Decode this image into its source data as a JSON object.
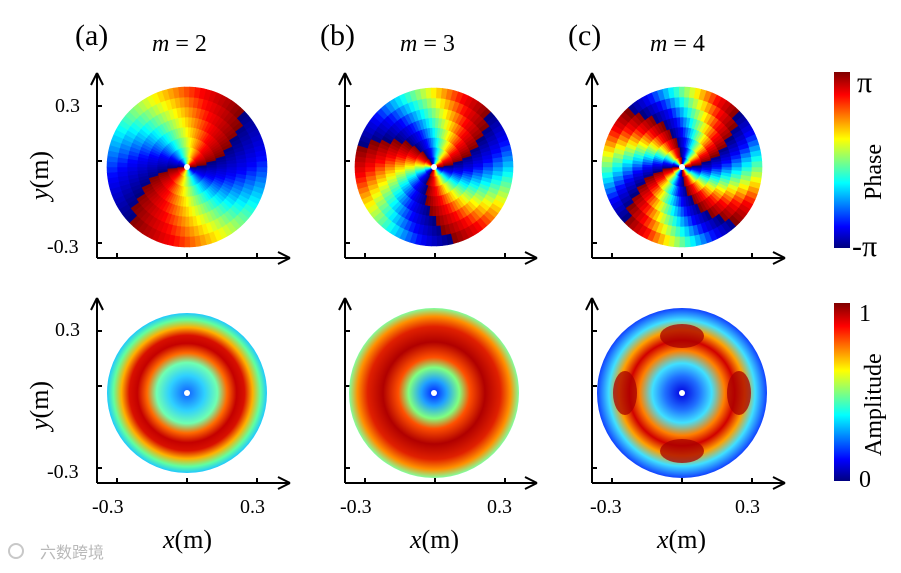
{
  "panels": [
    {
      "label": "(a)",
      "m": "2"
    },
    {
      "label": "(b)",
      "m": "3"
    },
    {
      "label": "(c)",
      "m": "4"
    }
  ],
  "m_prefix": "m",
  "m_equals": " = ",
  "axes": {
    "ylabel_var": "y",
    "ylabel_unit": "(m)",
    "xlabel_var": "x",
    "xlabel_unit": "(m)",
    "ytick_top": "0.3",
    "ytick_bottom": "-0.3",
    "xtick_left": "-0.3",
    "xtick_right": "0.3"
  },
  "colorbars": {
    "phase": {
      "title": "Phase",
      "max": "π",
      "min": "-π"
    },
    "amplitude": {
      "title": "Amplitude",
      "max": "1",
      "min": "0"
    }
  },
  "colormap": [
    "#00007f",
    "#0000ff",
    "#00ffff",
    "#ffff00",
    "#ff0000",
    "#7f0000"
  ],
  "watermark": "六数跨境"
}
